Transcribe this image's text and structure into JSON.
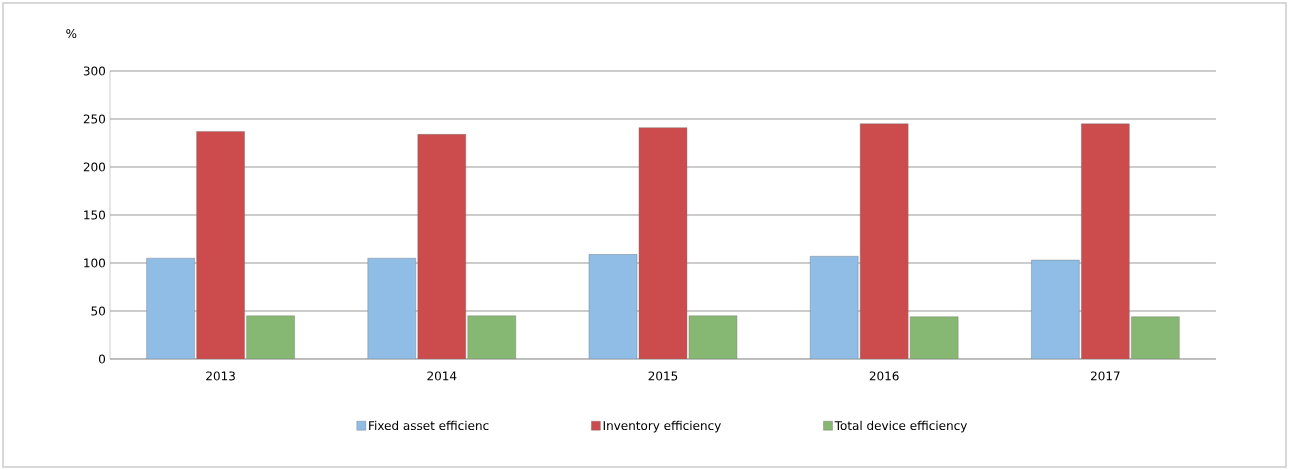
{
  "chart_data": {
    "type": "bar",
    "ylabel": "%",
    "categories": [
      "2013",
      "2014",
      "2015",
      "2016",
      "2017"
    ],
    "series": [
      {
        "name": "Fixed asset efficienc",
        "color": "#8fbde6",
        "values": [
          105,
          105,
          109,
          107,
          103
        ]
      },
      {
        "name": "Inventory efficiency",
        "color": "#cc4b4c",
        "values": [
          237,
          234,
          241,
          245,
          245
        ]
      },
      {
        "name": "Total device efficiency",
        "color": "#86b873",
        "values": [
          45,
          45,
          45,
          44,
          44
        ]
      }
    ],
    "ylim": [
      0,
      300
    ],
    "yticks": [
      0,
      50,
      100,
      150,
      200,
      250,
      300
    ],
    "grid": "y",
    "legend": "bottom"
  }
}
